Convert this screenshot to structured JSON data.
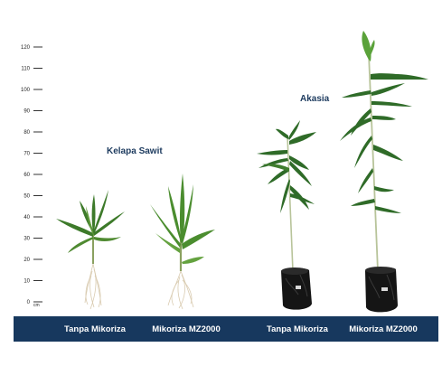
{
  "scale": {
    "ticks": [
      "120",
      "110",
      "100",
      "90",
      "80",
      "70",
      "60",
      "50",
      "40",
      "30",
      "20",
      "10",
      "0"
    ],
    "unit": "cm"
  },
  "groups": [
    {
      "title": "Kelapa Sawit"
    },
    {
      "title": "Akasia"
    }
  ],
  "captions": [
    "Tanpa Mikoriza",
    "Mikoriza MZ2000",
    "Tanpa Mikoriza",
    "Mikoriza MZ2000"
  ],
  "colors": {
    "bar": "#17385e",
    "title": "#1c3a5e",
    "leaf": "#3d7a2a",
    "leaf_light": "#6ea83e",
    "stem": "#b8c49a",
    "pot": "#151515",
    "root": "#d9cbb0"
  }
}
